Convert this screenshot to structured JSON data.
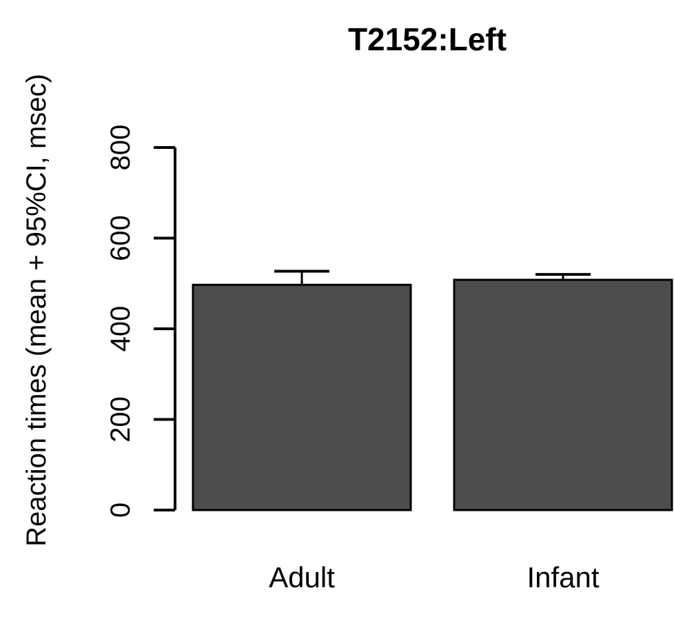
{
  "chart_data": {
    "type": "bar",
    "title": "T2152:Left",
    "xlabel": "",
    "ylabel": "Reaction times (mean + 95%CI, msec)",
    "categories": [
      "Adult",
      "Infant"
    ],
    "values": [
      497,
      508
    ],
    "error_upper": [
      527,
      520
    ],
    "ylim": [
      0,
      800
    ],
    "yticks": [
      0,
      200,
      400,
      600,
      800
    ],
    "grid": false,
    "legend": "none",
    "colors": {
      "bar": "#4d4d4d",
      "outline": "#000000"
    }
  }
}
